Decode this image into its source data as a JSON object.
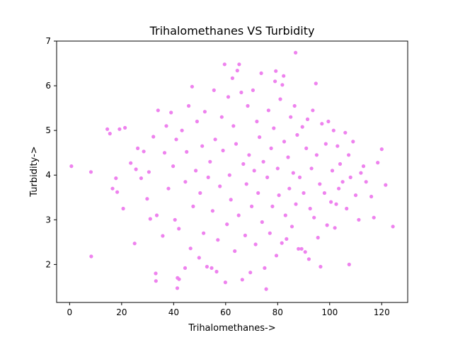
{
  "chart_data": {
    "type": "scatter",
    "title": "Trihalomethanes VS Turbidity",
    "xlabel": "Trihalomethanes->",
    "ylabel": "Turbidity->",
    "xlim": [
      -5,
      130
    ],
    "ylim": [
      1.15,
      7.0
    ],
    "xticks": [
      0,
      20,
      40,
      60,
      80,
      100,
      120
    ],
    "yticks": [
      2,
      3,
      4,
      5,
      6,
      7
    ],
    "grid": false,
    "legend": "none",
    "marker_color": "#ee82ee",
    "points": [
      [
        0.7,
        4.2
      ],
      [
        8.2,
        4.07
      ],
      [
        8.3,
        2.18
      ],
      [
        14.5,
        5.03
      ],
      [
        15.5,
        4.93
      ],
      [
        16.5,
        3.7
      ],
      [
        17.8,
        3.93
      ],
      [
        18.3,
        3.62
      ],
      [
        19.2,
        5.03
      ],
      [
        21.3,
        5.06
      ],
      [
        20.6,
        3.25
      ],
      [
        23.5,
        4.27
      ],
      [
        25.0,
        2.47
      ],
      [
        25.5,
        4.13
      ],
      [
        26.2,
        4.6
      ],
      [
        27.5,
        3.93
      ],
      [
        28.5,
        4.53
      ],
      [
        29.8,
        3.47
      ],
      [
        30.5,
        4.07
      ],
      [
        31.0,
        3.02
      ],
      [
        32.2,
        4.86
      ],
      [
        33.1,
        1.8
      ],
      [
        33.2,
        1.63
      ],
      [
        33.5,
        3.1
      ],
      [
        34.0,
        5.45
      ],
      [
        35.8,
        2.64
      ],
      [
        36.5,
        4.5
      ],
      [
        37.2,
        5.1
      ],
      [
        38.0,
        3.7
      ],
      [
        39.0,
        5.4
      ],
      [
        39.8,
        4.2
      ],
      [
        40.5,
        3.0
      ],
      [
        41.0,
        4.8
      ],
      [
        41.4,
        1.47
      ],
      [
        41.5,
        1.7
      ],
      [
        42.1,
        1.67
      ],
      [
        42.0,
        2.8
      ],
      [
        43.2,
        5.0
      ],
      [
        44.4,
        1.92
      ],
      [
        44.5,
        3.85
      ],
      [
        45.0,
        4.52
      ],
      [
        45.8,
        5.55
      ],
      [
        46.5,
        2.36
      ],
      [
        47.1,
        5.98
      ],
      [
        47.5,
        3.3
      ],
      [
        48.5,
        4.1
      ],
      [
        49.0,
        5.2
      ],
      [
        49.8,
        2.15
      ],
      [
        50.2,
        3.6
      ],
      [
        51.0,
        4.65
      ],
      [
        51.5,
        2.7
      ],
      [
        52.0,
        5.42
      ],
      [
        52.8,
        1.95
      ],
      [
        53.3,
        3.95
      ],
      [
        54.0,
        4.3
      ],
      [
        54.6,
        1.92
      ],
      [
        55.0,
        3.2
      ],
      [
        55.5,
        5.9
      ],
      [
        56.0,
        4.8
      ],
      [
        56.5,
        1.84
      ],
      [
        57.0,
        2.55
      ],
      [
        57.8,
        3.75
      ],
      [
        58.5,
        5.3
      ],
      [
        59.0,
        4.55
      ],
      [
        59.6,
        6.48
      ],
      [
        59.9,
        1.6
      ],
      [
        60.5,
        2.9
      ],
      [
        61.0,
        5.75
      ],
      [
        61.5,
        4.0
      ],
      [
        62.0,
        3.45
      ],
      [
        62.6,
        6.17
      ],
      [
        63.0,
        5.1
      ],
      [
        63.5,
        2.3
      ],
      [
        64.0,
        4.7
      ],
      [
        64.5,
        6.34
      ],
      [
        65.2,
        6.48
      ],
      [
        65.0,
        3.1
      ],
      [
        66.0,
        5.85
      ],
      [
        66.4,
        1.66
      ],
      [
        66.8,
        4.25
      ],
      [
        67.5,
        2.65
      ],
      [
        68.0,
        3.8
      ],
      [
        68.5,
        5.55
      ],
      [
        69.0,
        4.45
      ],
      [
        69.5,
        1.82
      ],
      [
        70.0,
        3.3
      ],
      [
        70.5,
        5.9
      ],
      [
        71.0,
        4.1
      ],
      [
        71.5,
        2.45
      ],
      [
        72.0,
        5.2
      ],
      [
        72.5,
        3.6
      ],
      [
        73.0,
        4.85
      ],
      [
        73.7,
        6.28
      ],
      [
        74.0,
        2.95
      ],
      [
        74.5,
        4.3
      ],
      [
        75.0,
        1.92
      ],
      [
        75.6,
        1.45
      ],
      [
        76.0,
        3.95
      ],
      [
        76.5,
        5.45
      ],
      [
        77.0,
        2.7
      ],
      [
        77.5,
        4.6
      ],
      [
        78.0,
        3.3
      ],
      [
        78.5,
        5.05
      ],
      [
        79.0,
        6.1
      ],
      [
        79.3,
        6.33
      ],
      [
        79.5,
        2.2
      ],
      [
        80.0,
        4.15
      ],
      [
        80.5,
        3.55
      ],
      [
        81.0,
        5.7
      ],
      [
        81.6,
        2.48
      ],
      [
        81.8,
        6.02
      ],
      [
        82.3,
        6.22
      ],
      [
        82.5,
        4.75
      ],
      [
        83.0,
        3.1
      ],
      [
        83.4,
        2.57
      ],
      [
        84.0,
        4.4
      ],
      [
        84.5,
        3.7
      ],
      [
        85.0,
        5.3
      ],
      [
        85.5,
        2.85
      ],
      [
        86.0,
        4.05
      ],
      [
        86.5,
        5.55
      ],
      [
        86.9,
        6.74
      ],
      [
        87.0,
        3.35
      ],
      [
        87.5,
        4.9
      ],
      [
        88.0,
        2.35
      ],
      [
        88.5,
        3.95
      ],
      [
        89.2,
        2.35
      ],
      [
        89.5,
        5.08
      ],
      [
        90.0,
        3.6
      ],
      [
        90.6,
        2.28
      ],
      [
        91.0,
        4.6
      ],
      [
        91.5,
        5.25
      ],
      [
        92.0,
        2.12
      ],
      [
        92.5,
        3.25
      ],
      [
        93.0,
        4.15
      ],
      [
        93.5,
        5.45
      ],
      [
        94.0,
        3.05
      ],
      [
        94.7,
        6.05
      ],
      [
        95.0,
        4.45
      ],
      [
        95.5,
        2.6
      ],
      [
        96.2,
        3.8
      ],
      [
        96.5,
        1.95
      ],
      [
        97.0,
        5.15
      ],
      [
        98.0,
        3.6
      ],
      [
        98.5,
        4.7
      ],
      [
        99.0,
        2.88
      ],
      [
        99.5,
        5.2
      ],
      [
        100.5,
        3.4
      ],
      [
        101.0,
        4.1
      ],
      [
        101.5,
        5.0
      ],
      [
        102.0,
        2.82
      ],
      [
        102.5,
        3.35
      ],
      [
        103.0,
        4.65
      ],
      [
        103.5,
        3.7
      ],
      [
        104.0,
        4.25
      ],
      [
        105.0,
        3.85
      ],
      [
        106.0,
        4.95
      ],
      [
        106.5,
        3.25
      ],
      [
        107.3,
        4.45
      ],
      [
        107.5,
        2.0
      ],
      [
        108.0,
        3.95
      ],
      [
        109.0,
        4.75
      ],
      [
        110.0,
        3.55
      ],
      [
        111.2,
        3.0
      ],
      [
        112.0,
        4.05
      ],
      [
        113.0,
        4.2
      ],
      [
        114.0,
        3.85
      ],
      [
        116.0,
        3.52
      ],
      [
        117.0,
        3.05
      ],
      [
        118.5,
        4.28
      ],
      [
        120.0,
        4.58
      ],
      [
        121.5,
        3.78
      ],
      [
        124.3,
        2.85
      ]
    ]
  }
}
